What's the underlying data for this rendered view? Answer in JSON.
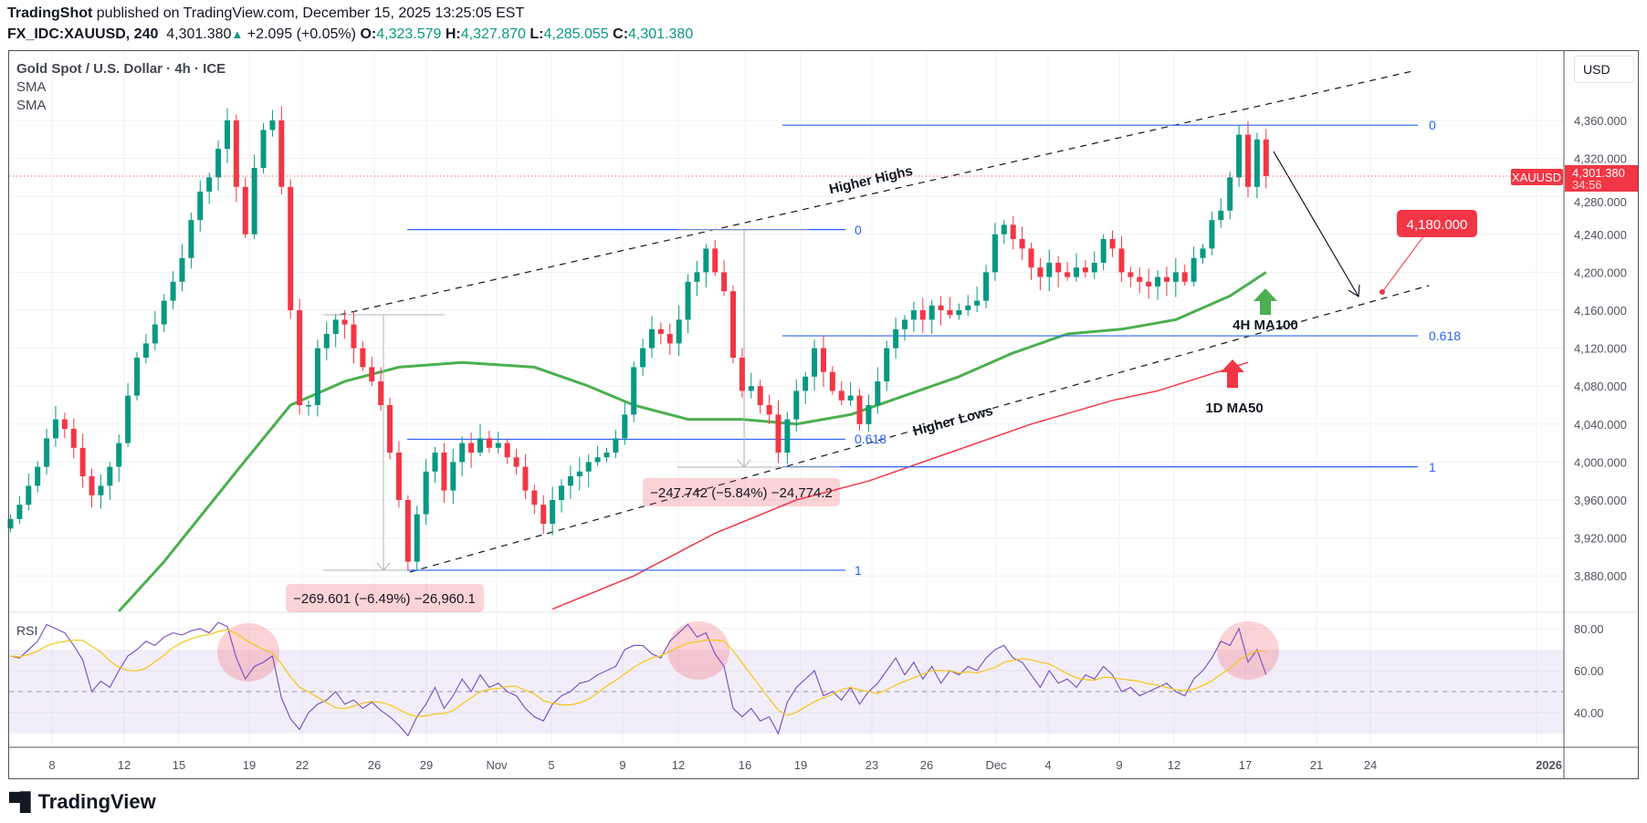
{
  "header": {
    "author": "TradingShot",
    "published": "published on TradingView.com, December 15, 2025 13:25:05 EST",
    "symbol": "FX_IDC:XAUUSD, 240",
    "last": "4,301.380",
    "change": "+2.095 (+0.05%)",
    "o_label": "O:",
    "o": "4,323.579",
    "h_label": "H:",
    "h": "4,327.870",
    "l_label": "L:",
    "l": "4,285.055",
    "c_label": "C:",
    "c": "4,301.380"
  },
  "legend": {
    "title": "Gold Spot / U.S. Dollar · 4h · ICE",
    "sma1": "SMA",
    "sma2": "SMA",
    "rsi": "RSI"
  },
  "currency": "USD",
  "price_tag": {
    "symbol": "XAUUSD",
    "price": "4,301.380",
    "countdown": "34:56"
  },
  "annotations": {
    "higher_highs": "Higher Highs",
    "higher_lows": "Higher Lows",
    "ma100": "4H MA100",
    "ma50": "1D MA50",
    "target": "4,180.000",
    "measure1": "−269.601 (−6.49%) −26,960.1",
    "measure2": "−247.742 (−5.84%) −24,774.2",
    "fib1": {
      "l0": "0",
      "l618": "0.618",
      "l1": "1"
    },
    "fib2": {
      "l0": "0",
      "l618": "0.618",
      "l1": "1"
    }
  },
  "branding": "TradingView",
  "colors": {
    "up": "#089981",
    "down": "#f23645",
    "fib": "#2962ff",
    "ma100": "#4caf50",
    "ma50": "#f23645",
    "rsi": "#7e57c2",
    "rsi_ma": "#f5c518"
  },
  "chart_data": [
    {
      "type": "candlestick",
      "title": "Gold Spot / U.S. Dollar · 4h · ICE",
      "x_ticks": [
        "8",
        "12",
        "15",
        "19",
        "22",
        "26",
        "29",
        "Nov",
        "5",
        "9",
        "12",
        "16",
        "19",
        "23",
        "26",
        "Dec",
        "4",
        "9",
        "12",
        "17",
        "21",
        "24",
        "2026"
      ],
      "y_ticks": [
        "4,360.000",
        "4,320.000",
        "4,280.000",
        "4,240.000",
        "4,200.000",
        "4,160.000",
        "4,120.000",
        "4,080.000",
        "4,040.000",
        "4,000.000",
        "3,960.000",
        "3,920.000",
        "3,880.000"
      ],
      "ylim": [
        3850,
        4420
      ],
      "grid": true,
      "first_open": 3930,
      "close": [
        3940,
        3955,
        3975,
        3995,
        4025,
        4045,
        4035,
        4015,
        3985,
        3965,
        3975,
        3995,
        4020,
        4070,
        4110,
        4125,
        4145,
        4170,
        4190,
        4215,
        4255,
        4285,
        4300,
        4330,
        4360,
        4290,
        4240,
        4310,
        4350,
        4360,
        4290,
        4160,
        4060,
        4060,
        4120,
        4135,
        4150,
        4145,
        4120,
        4100,
        4085,
        4060,
        4010,
        3960,
        3895,
        3945,
        3990,
        4010,
        3970,
        4000,
        4020,
        4010,
        4025,
        4015,
        4020,
        4005,
        3995,
        3970,
        3955,
        3935,
        3960,
        3975,
        3985,
        3990,
        4000,
        4005,
        4010,
        4025,
        4050,
        4100,
        4120,
        4140,
        4135,
        4125,
        4150,
        4190,
        4200,
        4225,
        4200,
        4180,
        4110,
        4075,
        4080,
        4060,
        4050,
        4010,
        4045,
        4075,
        4090,
        4120,
        4095,
        4075,
        4065,
        4070,
        4040,
        4060,
        4085,
        4120,
        4140,
        4150,
        4160,
        4150,
        4165,
        4160,
        4155,
        4160,
        4165,
        4170,
        4200,
        4240,
        4250,
        4235,
        4225,
        4205,
        4195,
        4210,
        4200,
        4195,
        4205,
        4200,
        4210,
        4235,
        4225,
        4200,
        4195,
        4190,
        4185,
        4195,
        4190,
        4200,
        4190,
        4215,
        4225,
        4255,
        4265,
        4300,
        4345,
        4290,
        4340,
        4301.38
      ],
      "sma_4h_100": {
        "name": "4H MA100",
        "points": [
          [
            12,
            3835
          ],
          [
            17,
            3895
          ],
          [
            25,
            3990
          ],
          [
            31,
            4060
          ],
          [
            37,
            4085
          ],
          [
            43,
            4100
          ],
          [
            50,
            4105
          ],
          [
            58,
            4100
          ],
          [
            64,
            4080
          ],
          [
            69,
            4060
          ],
          [
            75,
            4045
          ],
          [
            81,
            4045
          ],
          [
            87,
            4040
          ],
          [
            93,
            4050
          ],
          [
            99,
            4070
          ],
          [
            105,
            4090
          ],
          [
            111,
            4115
          ],
          [
            117,
            4135
          ],
          [
            123,
            4140
          ],
          [
            129,
            4150
          ],
          [
            135,
            4175
          ],
          [
            139,
            4200
          ]
        ]
      },
      "sma_1d_50": {
        "name": "1D MA50",
        "points": [
          [
            60,
            3845
          ],
          [
            69,
            3880
          ],
          [
            78,
            3925
          ],
          [
            87,
            3960
          ],
          [
            95,
            3980
          ],
          [
            104,
            4010
          ],
          [
            113,
            4040
          ],
          [
            122,
            4065
          ],
          [
            127,
            4075
          ],
          [
            137,
            4105
          ]
        ]
      },
      "last_price": 4301.38,
      "target_price": 4180.0,
      "fib_1": {
        "p0": 4245,
        "p618": 4024,
        "p1": 3886
      },
      "fib_2": {
        "p0": 4355,
        "p618": 4133,
        "p1": 3995
      }
    },
    {
      "type": "line",
      "title": "RSI",
      "y_ticks": [
        "80.00",
        "60.00",
        "40.00"
      ],
      "ylim": [
        22,
        85
      ],
      "band": [
        30,
        70
      ],
      "midline": 50,
      "rsi": [
        67,
        66,
        70,
        74,
        82,
        80,
        78,
        72,
        65,
        50,
        55,
        52,
        60,
        67,
        70,
        74,
        72,
        76,
        78,
        77,
        79,
        80,
        78,
        83,
        81,
        66,
        56,
        62,
        64,
        67,
        47,
        37,
        32,
        40,
        44,
        46,
        50,
        44,
        46,
        42,
        45,
        41,
        38,
        34,
        29,
        38,
        44,
        52,
        42,
        48,
        56,
        50,
        58,
        52,
        54,
        50,
        48,
        42,
        38,
        36,
        44,
        48,
        50,
        54,
        55,
        58,
        60,
        62,
        70,
        72,
        72,
        68,
        66,
        74,
        78,
        82,
        76,
        78,
        68,
        62,
        42,
        38,
        42,
        36,
        38,
        30,
        45,
        52,
        56,
        60,
        48,
        50,
        46,
        52,
        44,
        50,
        54,
        60,
        66,
        58,
        64,
        56,
        62,
        54,
        60,
        58,
        62,
        60,
        66,
        70,
        72,
        66,
        64,
        58,
        52,
        60,
        54,
        56,
        52,
        58,
        56,
        62,
        58,
        50,
        52,
        48,
        50,
        52,
        54,
        50,
        48,
        56,
        60,
        66,
        74,
        72,
        80,
        64,
        70,
        58
      ]
    }
  ]
}
